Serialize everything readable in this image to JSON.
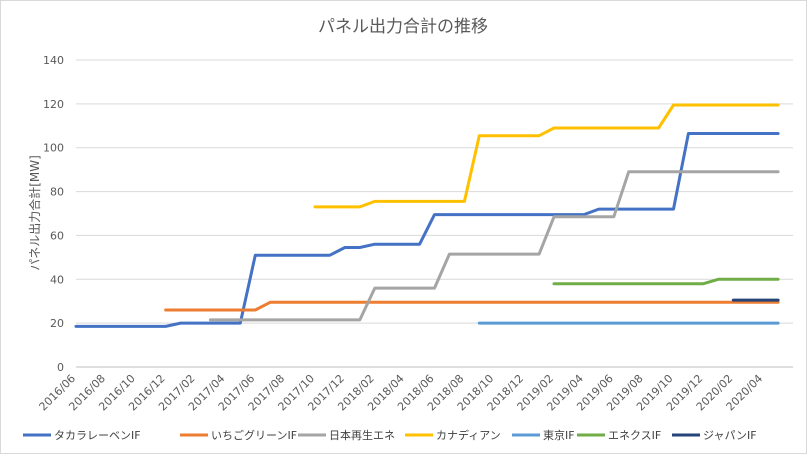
{
  "chart_data": {
    "type": "line",
    "title": "パネル出力合計の推移",
    "xlabel": "",
    "ylabel": "パネル出力合計[MW]",
    "ylim": [
      0,
      140
    ],
    "yticks": [
      0,
      20,
      40,
      60,
      80,
      100,
      120,
      140
    ],
    "x_start": "2016/06",
    "x_end": "2020/05",
    "x_tick_labels": [
      "2016/06",
      "2016/08",
      "2016/10",
      "2016/12",
      "2017/02",
      "2017/04",
      "2017/06",
      "2017/08",
      "2017/10",
      "2017/12",
      "2018/02",
      "2018/04",
      "2018/06",
      "2018/08",
      "2018/10",
      "2018/12",
      "2019/02",
      "2019/04",
      "2019/06",
      "2019/08",
      "2019/10",
      "2019/12",
      "2020/02",
      "2020/04"
    ],
    "grid": true,
    "legend_position": "bottom",
    "series": [
      {
        "name": "タカラレーベンIF",
        "color": "#4472C4",
        "points": [
          [
            "2016/06",
            18.5
          ],
          [
            "2016/12",
            18.5
          ],
          [
            "2017/01",
            20
          ],
          [
            "2017/05",
            20
          ],
          [
            "2017/06",
            51
          ],
          [
            "2017/11",
            51
          ],
          [
            "2017/12",
            54.5
          ],
          [
            "2018/01",
            54.5
          ],
          [
            "2018/02",
            56
          ],
          [
            "2018/05",
            56
          ],
          [
            "2018/06",
            69.5
          ],
          [
            "2019/04",
            69.5
          ],
          [
            "2019/05",
            72
          ],
          [
            "2019/10",
            72
          ],
          [
            "2019/11",
            106.5
          ],
          [
            "2020/05",
            106.5
          ]
        ]
      },
      {
        "name": "いちごグリーンIF",
        "color": "#ED7D31",
        "points": [
          [
            "2016/12",
            26
          ],
          [
            "2017/06",
            26
          ],
          [
            "2017/07",
            29.5
          ],
          [
            "2020/05",
            29.5
          ]
        ]
      },
      {
        "name": "日本再生エネ",
        "color": "#A5A5A5",
        "points": [
          [
            "2017/03",
            21.5
          ],
          [
            "2018/01",
            21.5
          ],
          [
            "2018/02",
            36
          ],
          [
            "2018/06",
            36
          ],
          [
            "2018/07",
            51.5
          ],
          [
            "2019/01",
            51.5
          ],
          [
            "2019/02",
            68.5
          ],
          [
            "2019/06",
            68.5
          ],
          [
            "2019/07",
            89
          ],
          [
            "2020/05",
            89
          ]
        ]
      },
      {
        "name": "カナディアン",
        "color": "#FFC000",
        "points": [
          [
            "2017/10",
            73
          ],
          [
            "2018/01",
            73
          ],
          [
            "2018/02",
            75.5
          ],
          [
            "2018/08",
            75.5
          ],
          [
            "2018/09",
            105.5
          ],
          [
            "2019/01",
            105.5
          ],
          [
            "2019/02",
            109
          ],
          [
            "2019/09",
            109
          ],
          [
            "2019/10",
            119.5
          ],
          [
            "2020/05",
            119.5
          ]
        ]
      },
      {
        "name": "東京IF",
        "color": "#5B9BD5",
        "points": [
          [
            "2018/09",
            20
          ],
          [
            "2020/05",
            20
          ]
        ]
      },
      {
        "name": "エネクスIF",
        "color": "#70AD47",
        "points": [
          [
            "2019/02",
            38
          ],
          [
            "2019/12",
            38
          ],
          [
            "2020/01",
            40
          ],
          [
            "2020/05",
            40
          ]
        ]
      },
      {
        "name": "ジャパンIF",
        "color": "#264478",
        "points": [
          [
            "2020/02",
            30.5
          ],
          [
            "2020/05",
            30.5
          ]
        ]
      }
    ]
  }
}
